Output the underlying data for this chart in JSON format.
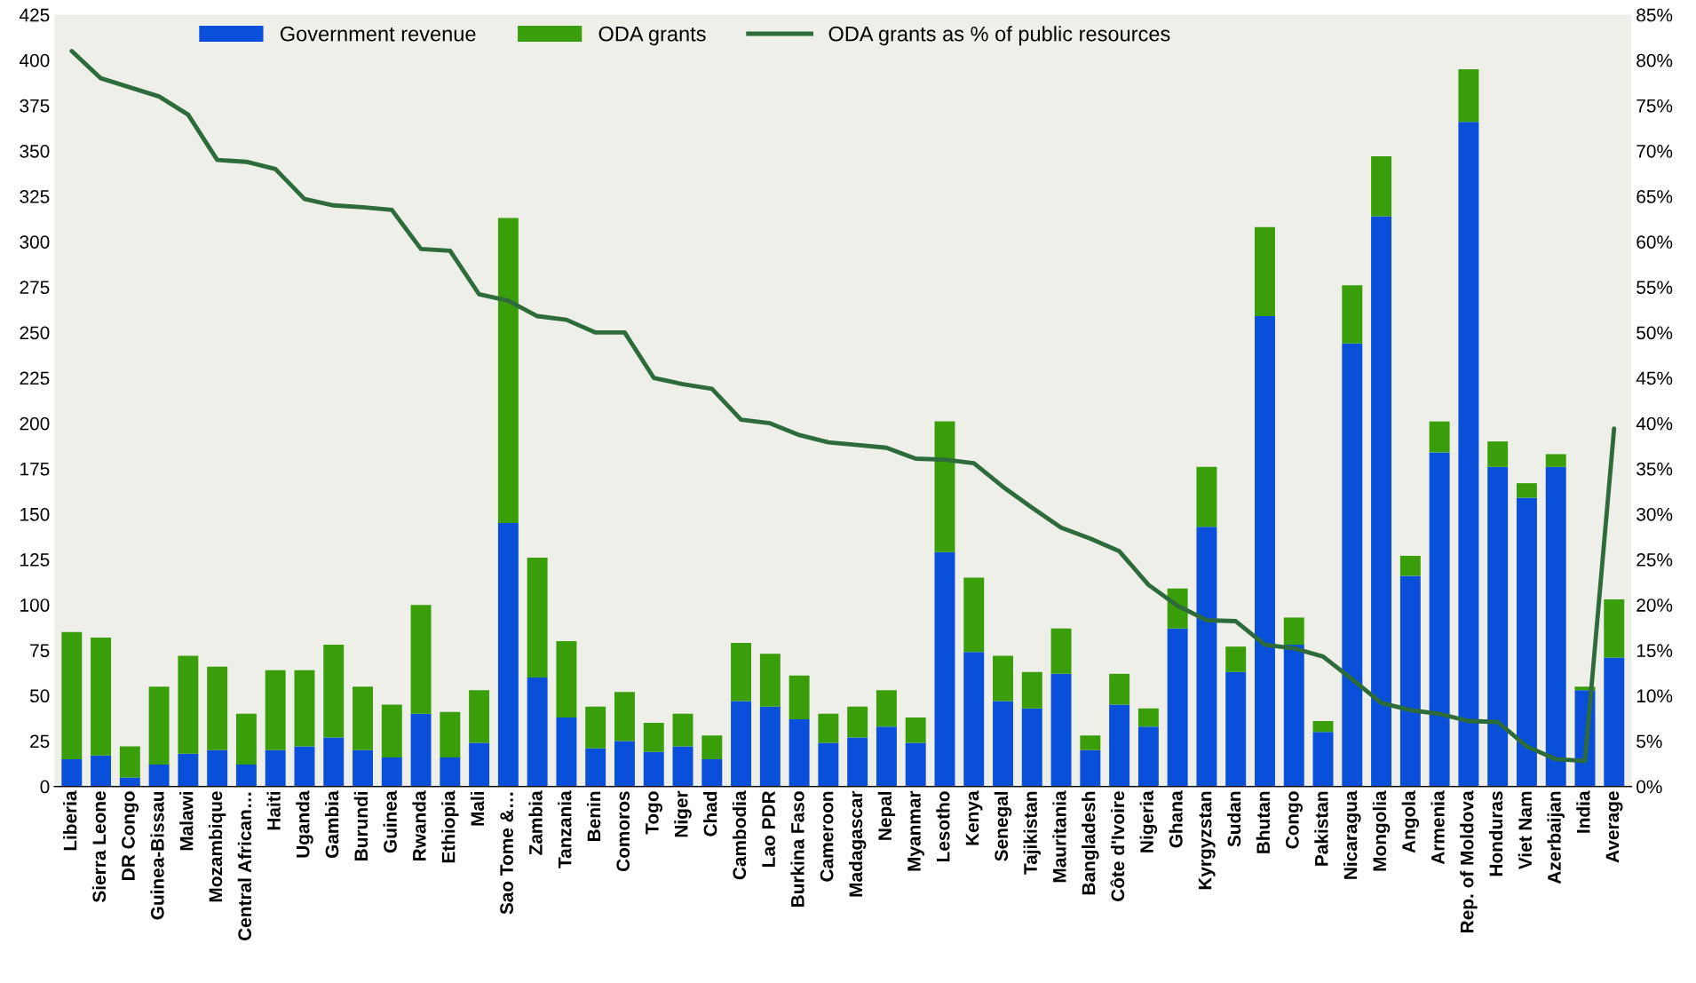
{
  "chart_data": {
    "type": "bar",
    "stacked": true,
    "categories": [
      "Liberia",
      "Sierra Leone",
      "DR Congo",
      "Guinea-Bissau",
      "Malawi",
      "Mozambique",
      "Central African…",
      "Haiti",
      "Uganda",
      "Gambia",
      "Burundi",
      "Guinea",
      "Rwanda",
      "Ethiopia",
      "Mali",
      "Sao Tome &…",
      "Zambia",
      "Tanzania",
      "Benin",
      "Comoros",
      "Togo",
      "Niger",
      "Chad",
      "Cambodia",
      "Lao PDR",
      "Burkina Faso",
      "Cameroon",
      "Madagascar",
      "Nepal",
      "Myanmar",
      "Lesotho",
      "Kenya",
      "Senegal",
      "Tajikistan",
      "Mauritania",
      "Bangladesh",
      "Côte d'Ivoire",
      "Nigeria",
      "Ghana",
      "Kyrgyzstan",
      "Sudan",
      "Bhutan",
      "Congo",
      "Pakistan",
      "Nicaragua",
      "Mongolia",
      "Angola",
      "Armenia",
      "Rep. of Moldova",
      "Honduras",
      "Viet Nam",
      "Azerbaijan",
      "India",
      "Average"
    ],
    "series": [
      {
        "name": "Government revenue",
        "color": "#0a4fd9",
        "values": [
          15,
          17,
          5,
          12,
          18,
          20,
          12,
          20,
          22,
          27,
          20,
          16,
          40,
          16,
          24,
          145,
          60,
          38,
          21,
          25,
          19,
          22,
          15,
          47,
          44,
          37,
          24,
          27,
          33,
          24,
          129,
          74,
          47,
          43,
          62,
          20,
          45,
          33,
          87,
          143,
          63,
          259,
          78,
          30,
          244,
          314,
          116,
          184,
          366,
          176,
          159,
          176,
          53,
          71
        ]
      },
      {
        "name": "ODA grants",
        "color": "#3a9e0a",
        "values": [
          70,
          65,
          17,
          43,
          54,
          46,
          28,
          44,
          42,
          51,
          35,
          29,
          60,
          25,
          29,
          168,
          66,
          42,
          23,
          27,
          16,
          18,
          13,
          32,
          29,
          24,
          16,
          17,
          20,
          14,
          72,
          41,
          25,
          20,
          25,
          8,
          17,
          10,
          22,
          33,
          14,
          49,
          15,
          6,
          32,
          33,
          11,
          17,
          29,
          14,
          8,
          7,
          2,
          32
        ]
      },
      {
        "name": "ODA grants as % of public resources",
        "type": "line",
        "axis": "y2",
        "color": "#2e6b3a",
        "values": [
          81,
          78,
          77,
          76,
          74,
          69,
          68.8,
          68,
          64.7,
          64,
          63.8,
          63.5,
          59.2,
          59,
          54.2,
          53.5,
          51.8,
          51.4,
          50,
          50,
          45,
          44.3,
          43.8,
          40.4,
          40,
          38.7,
          37.9,
          37.6,
          37.3,
          36.1,
          36,
          35.6,
          33,
          30.7,
          28.5,
          27.3,
          25.9,
          22.2,
          19.9,
          18.3,
          18.2,
          15.6,
          15.2,
          14.3,
          11.8,
          9.2,
          8.4,
          8,
          7.2,
          7.1,
          4.4,
          3,
          2.8,
          39.4
        ]
      }
    ],
    "ylim": [
      0,
      425
    ],
    "yticks": [
      0,
      25,
      50,
      75,
      100,
      125,
      150,
      175,
      200,
      225,
      250,
      275,
      300,
      325,
      350,
      375,
      400,
      425
    ],
    "y2lim": [
      0,
      85
    ],
    "y2ticks": [
      {
        "value": 0,
        "label": "0%"
      },
      {
        "value": 5,
        "label": "5%"
      },
      {
        "value": 10,
        "label": "10%"
      },
      {
        "value": 15,
        "label": "15%"
      },
      {
        "value": 20,
        "label": "20%"
      },
      {
        "value": 25,
        "label": "25%"
      },
      {
        "value": 30,
        "label": "30%"
      },
      {
        "value": 35,
        "label": "35%"
      },
      {
        "value": 40,
        "label": "40%"
      },
      {
        "value": 45,
        "label": "45%"
      },
      {
        "value": 50,
        "label": "50%"
      },
      {
        "value": 55,
        "label": "55%"
      },
      {
        "value": 60,
        "label": "60%"
      },
      {
        "value": 65,
        "label": "65%"
      },
      {
        "value": 70,
        "label": "70%"
      },
      {
        "value": 75,
        "label": "75%"
      },
      {
        "value": 80,
        "label": "80%"
      },
      {
        "value": 85,
        "label": "85%"
      }
    ],
    "legend": "top",
    "grid": false
  }
}
